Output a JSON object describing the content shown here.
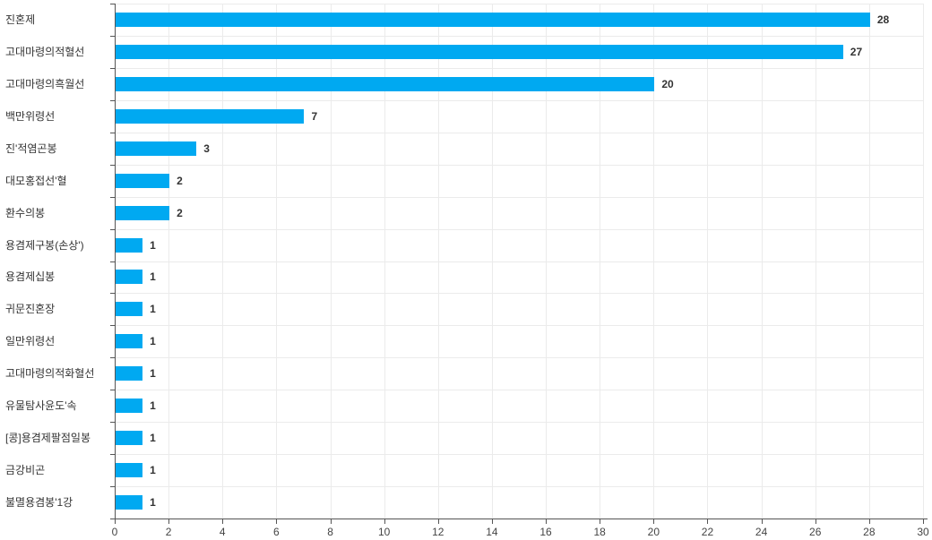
{
  "chart_data": {
    "type": "bar",
    "orientation": "horizontal",
    "title": "",
    "xlabel": "",
    "ylabel": "",
    "categories": [
      "진혼제",
      "고대마령의적혈선",
      "고대마령의흑월선",
      "백만위령선",
      "진'적염곤봉",
      "대모홍접선'혈",
      "환수의봉",
      "용겸제구봉(손상')",
      "용겸제십봉",
      "귀문진혼장",
      "일만위령선",
      "고대마령의적화혈선",
      "유물탐사윤도'속",
      "[콩]용겸제팔점일봉",
      "금강비곤",
      "불멸용겸봉'1강"
    ],
    "values": [
      28,
      27,
      20,
      7,
      3,
      2,
      2,
      1,
      1,
      1,
      1,
      1,
      1,
      1,
      1,
      1
    ],
    "xlim": [
      0,
      30
    ],
    "x_ticks": [
      0,
      2,
      4,
      6,
      8,
      10,
      12,
      14,
      16,
      18,
      20,
      22,
      24,
      26,
      28,
      30
    ],
    "grid": true,
    "legend": false,
    "bar_color": "#00a9f1",
    "axis_color": "#555555",
    "grid_color": "#ebebeb",
    "text_color": "#333333",
    "tick_text_color": "#444444"
  }
}
